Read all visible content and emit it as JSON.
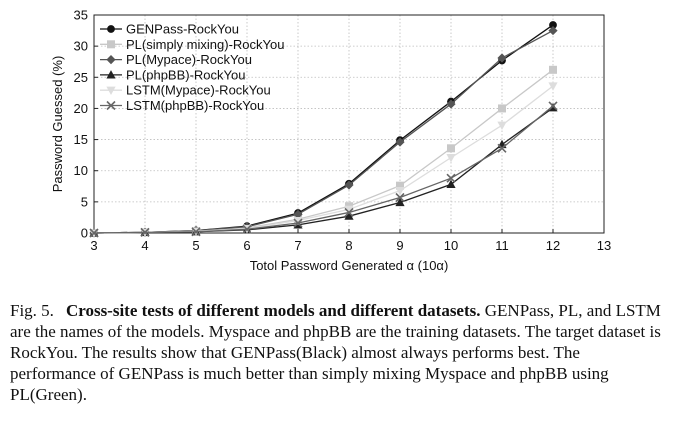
{
  "chart_data": {
    "type": "line",
    "xlabel": "Totol Password Generated α (10α)",
    "ylabel": "Password Guessed (%)",
    "xlim": [
      3,
      13
    ],
    "ylim": [
      0,
      35
    ],
    "xticks": [
      "3",
      "4",
      "5",
      "6",
      "7",
      "8",
      "9",
      "10",
      "11",
      "12",
      "13"
    ],
    "yticks": [
      "0",
      "5",
      "10",
      "15",
      "20",
      "25",
      "30",
      "35"
    ],
    "grid": true,
    "legend_position": "top-left",
    "x": [
      3,
      4,
      5,
      6,
      7,
      8,
      9,
      10,
      11,
      12
    ],
    "series": [
      {
        "name": "GENPass-RockYou",
        "color": "#111111",
        "marker": "circle",
        "values": [
          0,
          0.1,
          0.4,
          1.1,
          3.2,
          7.9,
          14.9,
          21.1,
          27.7,
          33.4
        ]
      },
      {
        "name": "PL(simply mixing)-RockYou",
        "color": "#c8c8c8",
        "marker": "square",
        "values": [
          0,
          0.1,
          0.3,
          0.8,
          2.2,
          4.3,
          7.6,
          13.6,
          20.0,
          26.2
        ]
      },
      {
        "name": "PL(Mypace)-RockYou",
        "color": "#555555",
        "marker": "diamond",
        "values": [
          0,
          0.1,
          0.4,
          1.0,
          3.0,
          7.7,
          14.6,
          20.7,
          28.1,
          32.5
        ]
      },
      {
        "name": "PL(phpBB)-RockYou",
        "color": "#222222",
        "marker": "triangle-up",
        "values": [
          0,
          0.1,
          0.2,
          0.5,
          1.3,
          2.7,
          4.9,
          7.8,
          14.2,
          20.1
        ]
      },
      {
        "name": "LSTM(Mypace)-RockYou",
        "color": "#dddddd",
        "marker": "triangle-down",
        "values": [
          0,
          0.1,
          0.3,
          0.7,
          2.0,
          3.8,
          6.8,
          12.1,
          17.3,
          23.6
        ]
      },
      {
        "name": "LSTM(phpBB)-RockYou",
        "color": "#666666",
        "marker": "x",
        "values": [
          0,
          0.1,
          0.2,
          0.6,
          1.6,
          3.3,
          5.7,
          8.8,
          13.6,
          20.4
        ]
      }
    ]
  },
  "caption": {
    "label": "Fig. 5.",
    "title": "Cross-site tests of different models and different datasets.",
    "body": "GENPass, PL, and LSTM are the names of the models. Myspace and phpBB are the training datasets. The target dataset is RockYou. The results show that GENPass(Black) almost always performs best. The performance of GENPass is much better than simply mixing Myspace and phpBB using PL(Green)."
  }
}
